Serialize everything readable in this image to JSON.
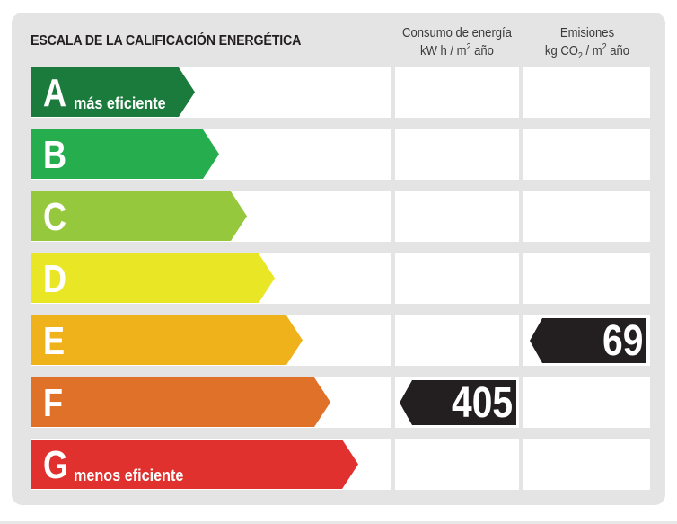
{
  "header": {
    "title": "ESCALA DE LA CALIFICACIÓN ENERGÉTICA",
    "consumo": {
      "line1": "Consumo de energía",
      "line2_a": "kW h / m",
      "line2_sup": "2",
      "line2_b": " año"
    },
    "emisiones": {
      "line1": "Emisiones",
      "line2_a": "kg CO",
      "line2_sub": "2",
      "line2_b": " / m",
      "line2_sup": "2",
      "line2_c": " año"
    }
  },
  "ratings": [
    {
      "letter": "A",
      "note": "más eficiente",
      "color": "#1b7b3c"
    },
    {
      "letter": "B",
      "note": "",
      "color": "#26ad4d"
    },
    {
      "letter": "C",
      "note": "",
      "color": "#95c83d"
    },
    {
      "letter": "D",
      "note": "",
      "color": "#e9e626"
    },
    {
      "letter": "E",
      "note": "",
      "color": "#f0b21b"
    },
    {
      "letter": "F",
      "note": "",
      "color": "#e07128"
    },
    {
      "letter": "G",
      "note": "menos eficiente",
      "color": "#e0312e"
    }
  ],
  "consumption": {
    "rating": "F",
    "value": "405"
  },
  "emissions": {
    "rating": "E",
    "value": "69"
  },
  "badge_color": "#231f20"
}
